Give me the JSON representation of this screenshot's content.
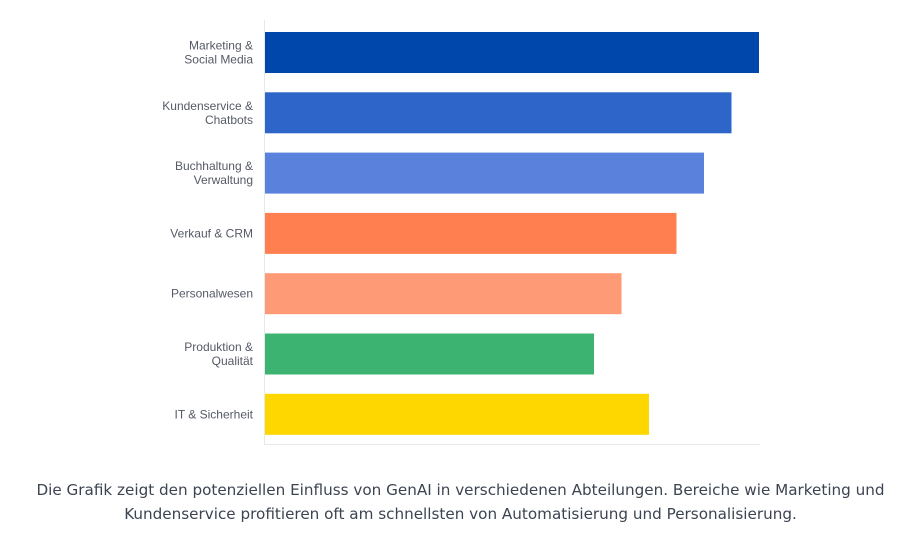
{
  "chart_data": {
    "type": "bar",
    "orientation": "horizontal",
    "categories": [
      [
        "Marketing &",
        "Social Media"
      ],
      [
        "Kundenservice &",
        "Chatbots"
      ],
      [
        "Buchhaltung &",
        "Verwaltung"
      ],
      [
        "Verkauf & CRM"
      ],
      [
        "Personalwesen"
      ],
      [
        "Produktion &",
        "Qualität"
      ],
      [
        "IT & Sicherheit"
      ]
    ],
    "values": [
      90,
      85,
      80,
      75,
      65,
      60,
      70
    ],
    "xlim": [
      0,
      90
    ],
    "grid": false,
    "colors": [
      "#0047ab",
      "#2d65c8",
      "#5a82dc",
      "#ff7f50",
      "#ff9a76",
      "#3cb371",
      "#ffd700"
    ]
  },
  "caption": {
    "line1": "Die Grafik zeigt den potenziellen Einfluss von GenAI in verschiedenen Abteilungen. Bereiche wie Marketing und",
    "line2": "Kundenservice profitieren oft am schnellsten von Automatisierung und Personalisierung."
  }
}
